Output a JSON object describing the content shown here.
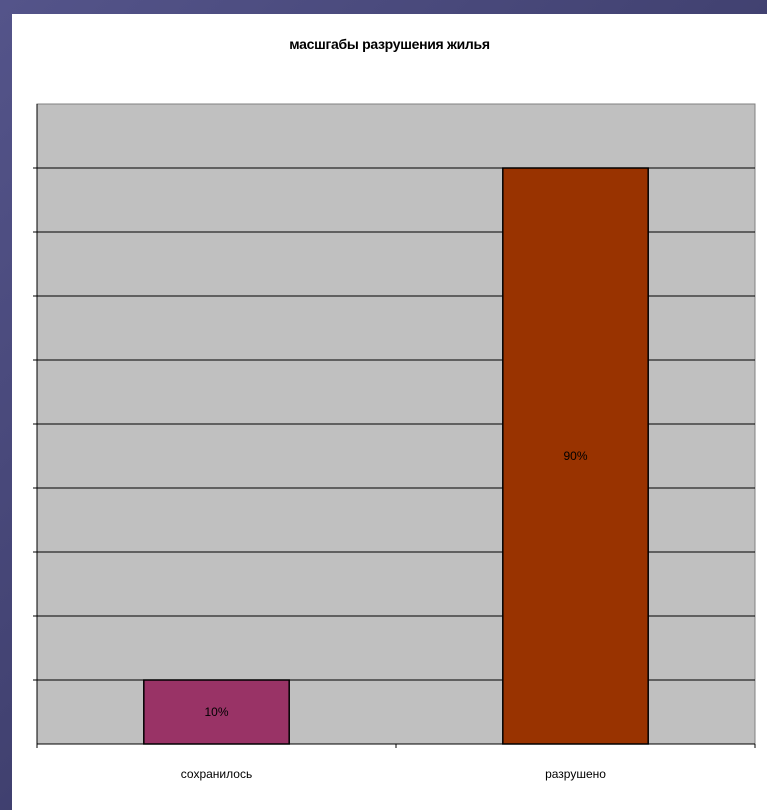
{
  "colors": {
    "plot_background": "#c0c0c0",
    "gridline": "#000000",
    "bar_preserved": "#993366",
    "bar_destroyed": "#993300"
  },
  "chart_data": {
    "type": "bar",
    "title": "масшгабы разрушения жилья",
    "categories": [
      "сохранилось",
      "разрушено"
    ],
    "values": [
      10,
      90
    ],
    "data_labels": [
      "10%",
      "90%"
    ],
    "bar_colors": [
      "#993366",
      "#993300"
    ],
    "ylim": [
      0,
      100
    ],
    "y_major_step": 10,
    "grid": true,
    "legend": "none",
    "xlabel": "",
    "ylabel": ""
  }
}
